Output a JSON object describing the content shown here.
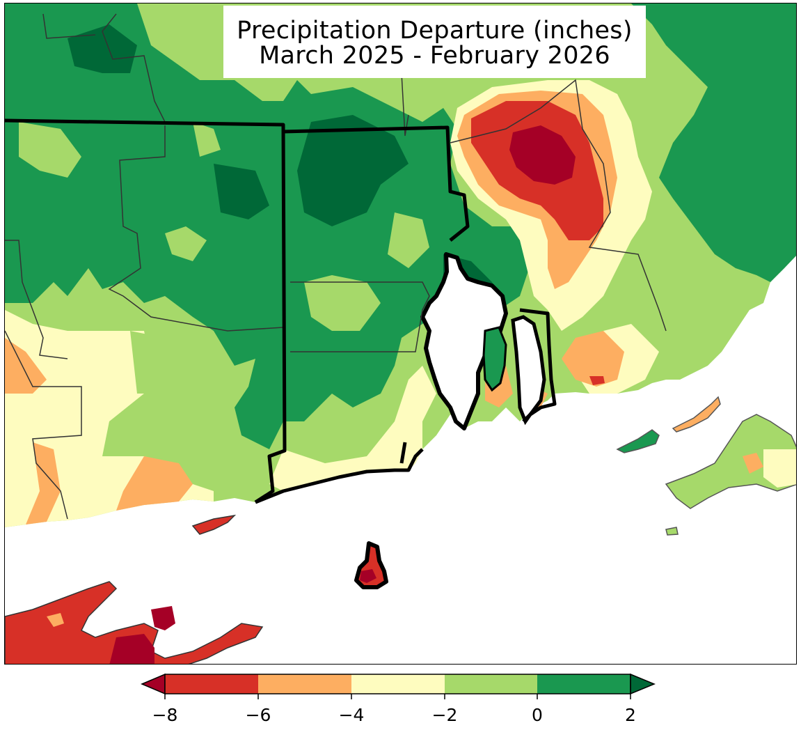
{
  "title": {
    "line1": "Precipitation Departure (inches)",
    "line2": "March 2025 - February 2026"
  },
  "map": {
    "variable": "precipitation departure",
    "units": "inches",
    "region": "southern New England (Connecticut, Rhode Island, southeastern Massachusetts, Long Island)",
    "dry_core_category": "-8 to -6",
    "wettest_category": "0 to 2"
  },
  "legend": {
    "tick_labels": [
      "−8",
      "−6",
      "−4",
      "−2",
      "0",
      "2"
    ],
    "bins": [
      {
        "range": "< -8",
        "color": "#a50026"
      },
      {
        "range": "-8 to -6",
        "color": "#d73027"
      },
      {
        "range": "-6 to -4",
        "color": "#fdae61"
      },
      {
        "range": "-4 to -2",
        "color": "#fefcbf"
      },
      {
        "range": "-2 to 0",
        "color": "#a6d96a"
      },
      {
        "range": "0 to 2",
        "color": "#1a9850"
      },
      {
        "range": "> 2",
        "color": "#006837"
      }
    ],
    "extend": "both"
  },
  "colors": {
    "dark_red": "#a50026",
    "red": "#d73027",
    "orange": "#fdae61",
    "pale_yellow": "#fefcbf",
    "light_green": "#a6d96a",
    "green": "#1a9850",
    "dark_green": "#006837",
    "water": "#ffffff"
  }
}
